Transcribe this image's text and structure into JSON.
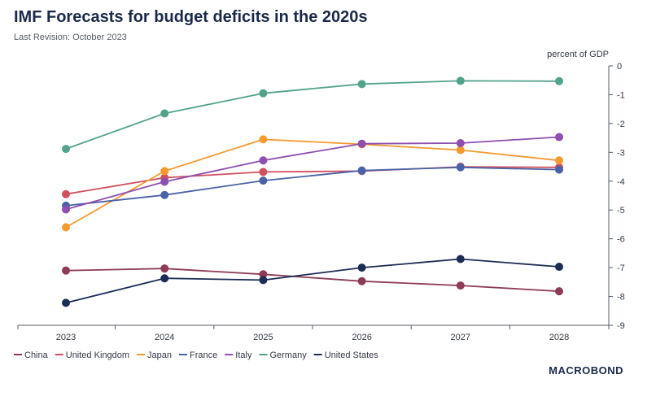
{
  "chart_data": {
    "type": "line",
    "title": "IMF Forecasts for budget deficits in the 2020s",
    "subtitle": "Last Revision: October 2023",
    "unit_label": "percent of GDP",
    "x": [
      "2023",
      "2024",
      "2025",
      "2026",
      "2027",
      "2028"
    ],
    "ylim": [
      -9,
      0
    ],
    "yticks": [
      0,
      -1,
      -2,
      -3,
      -4,
      -5,
      -6,
      -7,
      -8,
      -9
    ],
    "ytick_labels": [
      "0",
      "-1",
      "-2",
      "-3",
      "-4",
      "-5",
      "-6",
      "-7",
      "-8",
      "-9"
    ],
    "y_axis_position": "right",
    "grid": false,
    "legend_position": "bottom",
    "series": [
      {
        "name": "China",
        "color": "#8e3b58",
        "values": [
          -7.1,
          -7.03,
          -7.23,
          -7.47,
          -7.62,
          -7.82
        ]
      },
      {
        "name": "United Kingdom",
        "color": "#d24f5e",
        "values": [
          -4.45,
          -3.88,
          -3.68,
          -3.65,
          -3.5,
          -3.52
        ]
      },
      {
        "name": "Japan",
        "color": "#f59a2e",
        "values": [
          -5.6,
          -3.65,
          -2.55,
          -2.72,
          -2.92,
          -3.28
        ]
      },
      {
        "name": "France",
        "color": "#4a63a8",
        "values": [
          -4.85,
          -4.48,
          -3.98,
          -3.63,
          -3.52,
          -3.6
        ]
      },
      {
        "name": "Italy",
        "color": "#8e4fb0",
        "values": [
          -4.98,
          -4.02,
          -3.28,
          -2.7,
          -2.68,
          -2.47
        ]
      },
      {
        "name": "Germany",
        "color": "#52a28c",
        "values": [
          -2.88,
          -1.65,
          -0.95,
          -0.63,
          -0.52,
          -0.53
        ]
      },
      {
        "name": "United States",
        "color": "#1b2d55",
        "values": [
          -8.22,
          -7.37,
          -7.43,
          -7.0,
          -6.7,
          -6.97
        ]
      }
    ]
  },
  "brand": {
    "logo_text": "MACROBOND"
  }
}
